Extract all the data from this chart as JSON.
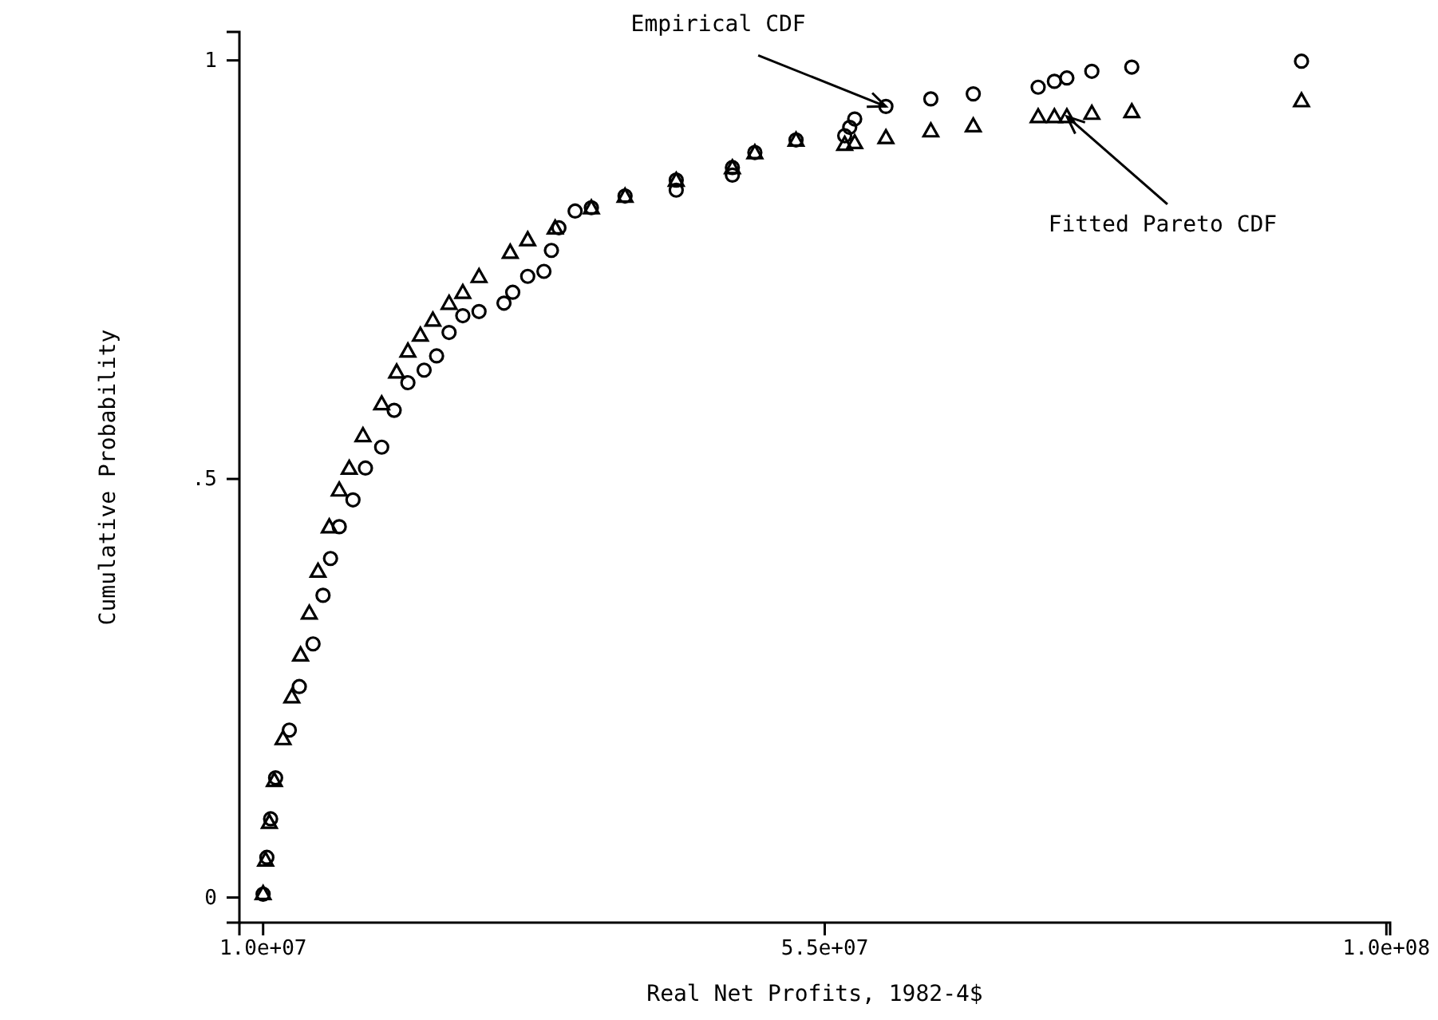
{
  "chart_data": {
    "type": "scatter",
    "xlabel": "Real Net Profits, 1982-4$",
    "ylabel": "Cumulative Probability",
    "xlim": [
      8100000,
      100300000
    ],
    "ylim": [
      -0.03,
      1.034
    ],
    "xticks": [
      {
        "value": 10000000,
        "label": "1.0e+07"
      },
      {
        "value": 55000000,
        "label": "5.5e+07"
      },
      {
        "value": 100000000,
        "label": "1.0e+08"
      }
    ],
    "yticks": [
      0,
      {
        "value": 0.5,
        "label": ".5"
      },
      1
    ],
    "grid": false,
    "series": [
      {
        "color": "#000000",
        "marker": "circle",
        "x": [
          10000000,
          10300000,
          10600000,
          11000000,
          12100000,
          12900000,
          14000000,
          14800000,
          15400000,
          16100000,
          17200000,
          18200000,
          19500000,
          20500000,
          21600000,
          22900000,
          23900000,
          24900000,
          26000000,
          27300000,
          29300000,
          30000000,
          31200000,
          32500000,
          33100000,
          33700000,
          35000000,
          36300000,
          39000000,
          43100000,
          43100000,
          47600000,
          47600000,
          49400000,
          52700000,
          56600000,
          57000000,
          57400000,
          59900000,
          63500000,
          66900000,
          72100000,
          73400000,
          74400000,
          76400000,
          79600000,
          93200000
        ],
        "values": [
          0.004,
          0.048,
          0.094,
          0.143,
          0.2,
          0.252,
          0.303,
          0.361,
          0.405,
          0.443,
          0.475,
          0.513,
          0.538,
          0.582,
          0.615,
          0.63,
          0.647,
          0.675,
          0.695,
          0.7,
          0.71,
          0.723,
          0.742,
          0.748,
          0.773,
          0.8,
          0.82,
          0.824,
          0.838,
          0.845,
          0.857,
          0.863,
          0.872,
          0.89,
          0.905,
          0.91,
          0.92,
          0.93,
          0.945,
          0.954,
          0.96,
          0.968,
          0.975,
          0.979,
          0.987,
          0.992,
          0.999
        ]
      },
      {
        "color": "#000000",
        "marker": "triangle",
        "x": [
          10000000,
          10200000,
          10500000,
          10900000,
          11600000,
          12300000,
          13000000,
          13700000,
          14400000,
          15300000,
          16100000,
          16900000,
          18000000,
          19500000,
          20700000,
          21600000,
          22600000,
          23600000,
          24900000,
          26000000,
          27300000,
          29800000,
          31200000,
          33400000,
          36300000,
          39000000,
          43100000,
          47600000,
          49400000,
          52700000,
          56600000,
          57400000,
          59900000,
          63500000,
          66900000,
          72100000,
          73400000,
          74400000,
          76400000,
          79600000,
          93200000
        ],
        "values": [
          0.005,
          0.045,
          0.09,
          0.14,
          0.19,
          0.24,
          0.29,
          0.34,
          0.39,
          0.443,
          0.487,
          0.513,
          0.552,
          0.59,
          0.628,
          0.653,
          0.672,
          0.69,
          0.71,
          0.723,
          0.742,
          0.771,
          0.786,
          0.8,
          0.824,
          0.838,
          0.857,
          0.872,
          0.89,
          0.905,
          0.9,
          0.902,
          0.908,
          0.916,
          0.922,
          0.933,
          0.933,
          0.933,
          0.937,
          0.939,
          0.952
        ]
      }
    ],
    "annotations": [
      {
        "text": "Empirical CDF",
        "x": 59900000,
        "y": 0.945
      },
      {
        "text": "Fitted Pareto CDF",
        "x": 74400000,
        "y": 0.933
      }
    ]
  }
}
